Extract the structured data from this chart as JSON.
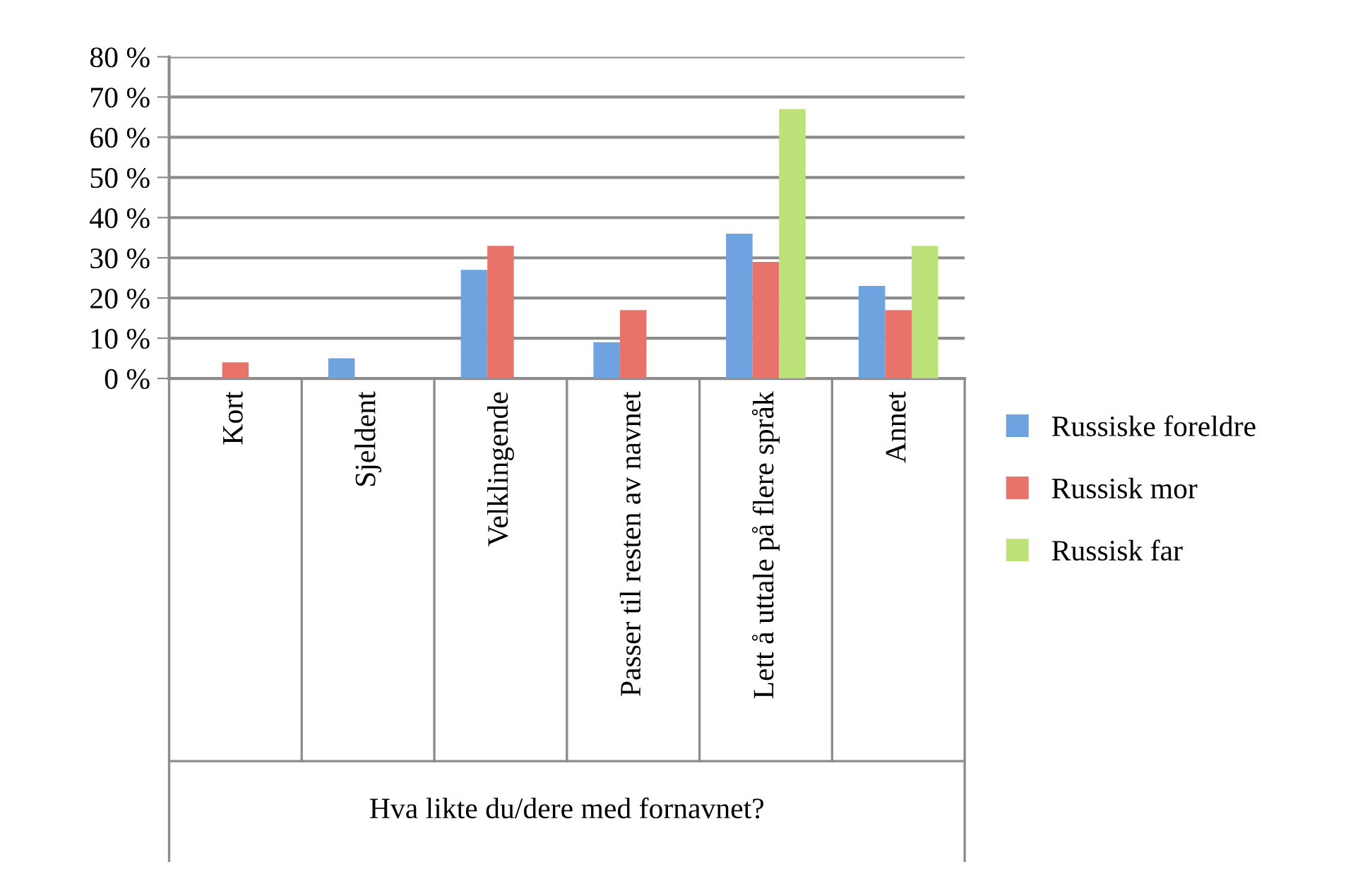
{
  "chart_data": {
    "type": "bar",
    "xlabel": "Hva likte du/dere med fornavnet?",
    "categories": [
      "Kort",
      "Sjeldent",
      "Velklingende",
      "Passer til resten av navnet",
      "Lett å uttale på flere språk",
      "Annet"
    ],
    "series": [
      {
        "name": "Russiske foreldre",
        "color": "#6fa3e0",
        "values": [
          0,
          5,
          27,
          9,
          36,
          23
        ]
      },
      {
        "name": "Russisk mor",
        "color": "#e8736a",
        "values": [
          4,
          0,
          33,
          17,
          29,
          17
        ]
      },
      {
        "name": "Russisk far",
        "color": "#bde27a",
        "values": [
          0,
          0,
          0,
          0,
          67,
          33
        ]
      }
    ],
    "ylim": [
      0,
      80
    ],
    "yticks": [
      {
        "value": 0,
        "label": "0 %"
      },
      {
        "value": 10,
        "label": "10 %"
      },
      {
        "value": 20,
        "label": "20 %"
      },
      {
        "value": 30,
        "label": "30 %"
      },
      {
        "value": 40,
        "label": "40 %"
      },
      {
        "value": 50,
        "label": "50 %"
      },
      {
        "value": 60,
        "label": "60 %"
      },
      {
        "value": 70,
        "label": "70 %"
      },
      {
        "value": 80,
        "label": "80 %"
      }
    ],
    "grid": "y",
    "legend": "right"
  }
}
